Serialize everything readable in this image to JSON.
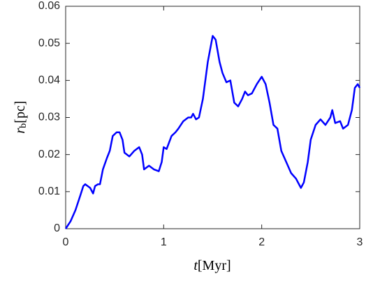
{
  "chart_data": {
    "type": "line",
    "xlabel_symbol": "t",
    "xlabel_unit": "[Myr]",
    "ylabel_symbol": "r",
    "ylabel_subscript": "b",
    "ylabel_unit": "[pc]",
    "x": [
      0,
      0.05,
      0.1,
      0.15,
      0.18,
      0.2,
      0.25,
      0.28,
      0.3,
      0.33,
      0.35,
      0.38,
      0.42,
      0.45,
      0.48,
      0.52,
      0.55,
      0.58,
      0.6,
      0.65,
      0.7,
      0.75,
      0.78,
      0.8,
      0.85,
      0.9,
      0.95,
      0.98,
      1.0,
      1.03,
      1.08,
      1.12,
      1.15,
      1.2,
      1.25,
      1.28,
      1.3,
      1.33,
      1.36,
      1.4,
      1.45,
      1.5,
      1.53,
      1.57,
      1.6,
      1.64,
      1.68,
      1.72,
      1.76,
      1.8,
      1.83,
      1.86,
      1.9,
      1.95,
      2.0,
      2.04,
      2.08,
      2.12,
      2.16,
      2.2,
      2.25,
      2.3,
      2.35,
      2.4,
      2.43,
      2.47,
      2.5,
      2.55,
      2.6,
      2.65,
      2.7,
      2.72,
      2.75,
      2.8,
      2.83,
      2.88,
      2.92,
      2.95,
      2.98,
      3.0
    ],
    "series": [
      {
        "name": "rb",
        "color": "#0000ff",
        "values": [
          0,
          0.002,
          0.005,
          0.009,
          0.0115,
          0.012,
          0.011,
          0.0095,
          0.0115,
          0.012,
          0.012,
          0.016,
          0.019,
          0.021,
          0.025,
          0.026,
          0.026,
          0.024,
          0.0205,
          0.0195,
          0.021,
          0.022,
          0.02,
          0.016,
          0.017,
          0.016,
          0.0155,
          0.018,
          0.022,
          0.0215,
          0.025,
          0.026,
          0.027,
          0.029,
          0.03,
          0.03,
          0.031,
          0.0295,
          0.03,
          0.035,
          0.045,
          0.052,
          0.051,
          0.045,
          0.042,
          0.0395,
          0.04,
          0.034,
          0.033,
          0.035,
          0.037,
          0.036,
          0.0365,
          0.039,
          0.041,
          0.039,
          0.034,
          0.028,
          0.027,
          0.021,
          0.018,
          0.015,
          0.0135,
          0.011,
          0.0125,
          0.018,
          0.024,
          0.028,
          0.0295,
          0.028,
          0.03,
          0.032,
          0.0285,
          0.029,
          0.027,
          0.028,
          0.032,
          0.038,
          0.039,
          0.038
        ]
      }
    ],
    "xlim": [
      0,
      3
    ],
    "xticks": [
      0,
      1,
      2,
      3
    ],
    "ylim": [
      0,
      0.06
    ],
    "yticks": [
      0,
      0.01,
      0.02,
      0.03,
      0.04,
      0.05,
      0.06
    ]
  }
}
